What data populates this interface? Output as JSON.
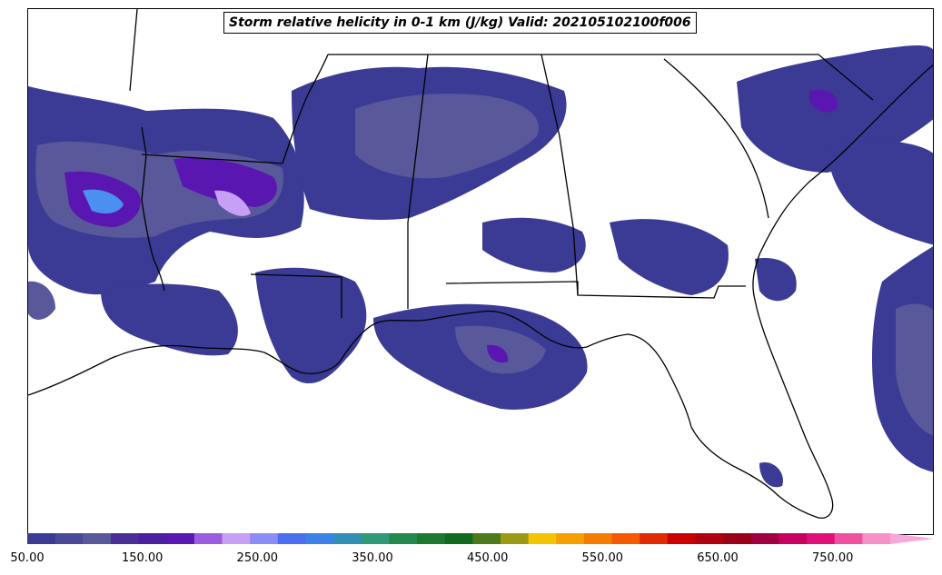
{
  "title": "Storm relative helicity in 0-1 km (J/kg) Valid: 202105102100f006",
  "colorbar": {
    "min": 50,
    "max": 800,
    "step": 25,
    "extend": "max",
    "tick_values": [
      "50.00",
      "150.00",
      "250.00",
      "350.00",
      "450.00",
      "550.00",
      "650.00",
      "750.00"
    ],
    "colors": [
      "#3b3b96",
      "#494998",
      "#58589a",
      "#4b2f96",
      "#4a1fa0",
      "#5a16b0",
      "#9b5ce0",
      "#c7a0f5",
      "#8c8cf7",
      "#4b6ff0",
      "#3a82e6",
      "#2f8fb5",
      "#2e9a78",
      "#238a4d",
      "#1e7a2e",
      "#0f6b1e",
      "#4d7a1a",
      "#9a9a14",
      "#f5c400",
      "#f5a000",
      "#f57c00",
      "#f55a00",
      "#e02a00",
      "#c80000",
      "#b00010",
      "#9a0018",
      "#a00040",
      "#c80060",
      "#e0107a",
      "#f050a0",
      "#f890c8"
    ],
    "extend_color": "#f8a8d8"
  },
  "map": {
    "region": "Southeastern United States",
    "field": "storm relative helicity 0-1 km",
    "boundary_color": "#000000",
    "shading_colors": {
      "low": "#3b3b96",
      "mid": "#58589a",
      "high": "#5a16b0",
      "higher": "#9b5ce0",
      "peak": "#4b8ff0"
    }
  }
}
